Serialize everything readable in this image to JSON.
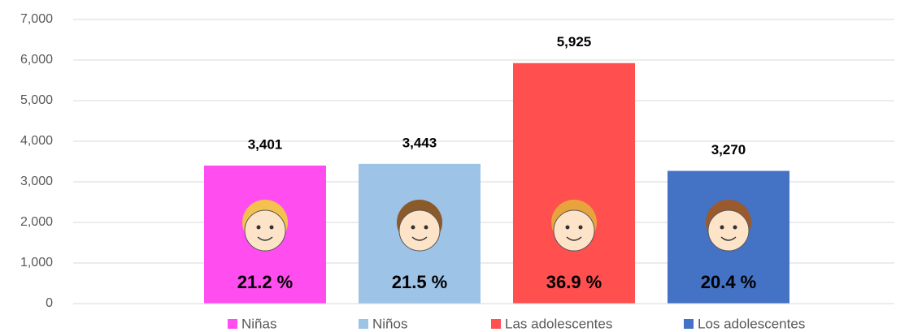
{
  "chart_data": {
    "type": "bar",
    "series": [
      {
        "name": "Niñas",
        "color": "#ff4df0",
        "values": [
          3401
        ],
        "value_labels": [
          "3,401"
        ],
        "percent_label": "21.2 %"
      },
      {
        "name": "Niños",
        "color": "#9dc3e6",
        "values": [
          3443
        ],
        "value_labels": [
          "3,443"
        ],
        "percent_label": "21.5 %"
      },
      {
        "name": "Las adolescentes",
        "color": "#ff4f4f",
        "values": [
          5925
        ],
        "value_labels": [
          "5,925"
        ],
        "percent_label": "36.9  %"
      },
      {
        "name": "Los adolescentes",
        "color": "#4472c4",
        "values": [
          3270
        ],
        "value_labels": [
          "3,270"
        ],
        "percent_label": "20.4 %"
      }
    ],
    "ylim": [
      0,
      7000
    ],
    "yticks": [
      0,
      {
        "value": 1000,
        "label": "1,000"
      },
      {
        "value": 2000,
        "label": "2,000"
      },
      {
        "value": 3000,
        "label": "3,000"
      },
      {
        "value": 4000,
        "label": "4,000"
      },
      {
        "value": 5000,
        "label": "5,000"
      },
      {
        "value": 6000,
        "label": "6,000"
      },
      {
        "value": 7000,
        "label": "7,000"
      }
    ],
    "grid": true
  }
}
